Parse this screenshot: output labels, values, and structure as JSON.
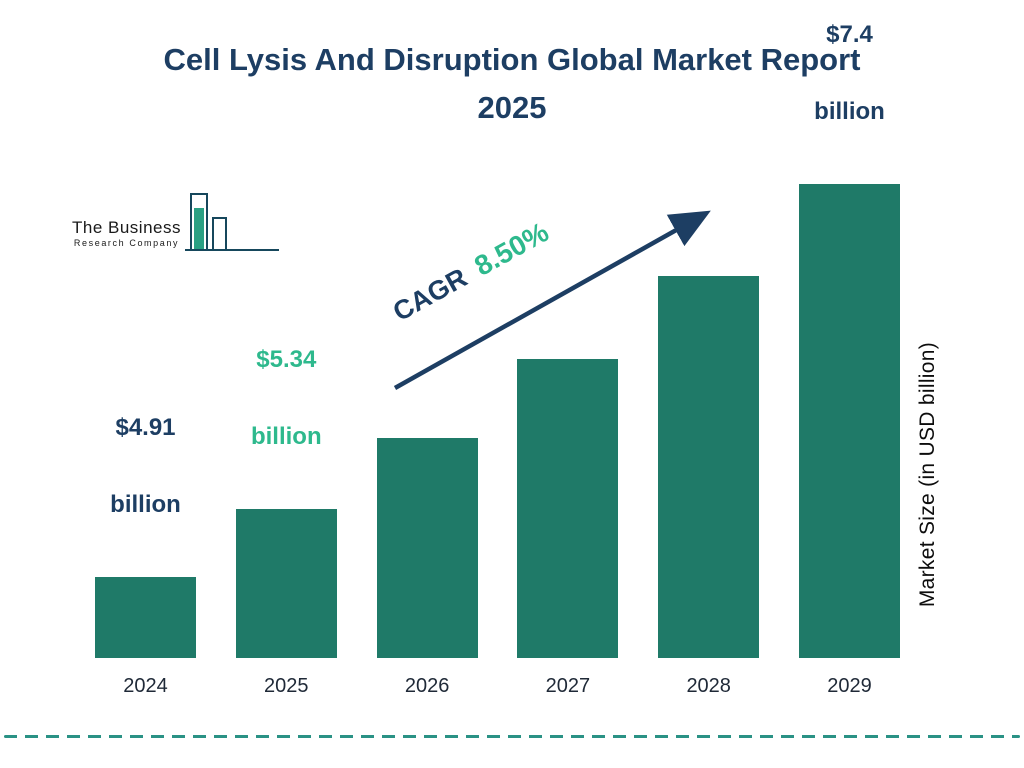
{
  "title": "Cell Lysis And Disruption Global Market Report 2025",
  "logo": {
    "line1": "The Business",
    "line2": "Research Company"
  },
  "cagr": {
    "label": "CAGR",
    "value": "8.50%"
  },
  "y_axis_label": "Market Size (in USD billion)",
  "colors": {
    "navy": "#1d3e63",
    "teal_bar": "#1f7a68",
    "green_accent": "#2eb98d",
    "dashed_line": "#2a9285"
  },
  "bars": [
    {
      "year": "2024",
      "value": 4.91,
      "label_line1": "$4.91",
      "label_line2": "billion",
      "label_color": "navy"
    },
    {
      "year": "2025",
      "value": 5.34,
      "label_line1": "$5.34",
      "label_line2": "billion",
      "label_color": "green"
    },
    {
      "year": "2026",
      "value": 5.79
    },
    {
      "year": "2027",
      "value": 6.29
    },
    {
      "year": "2028",
      "value": 6.82
    },
    {
      "year": "2029",
      "value": 7.4,
      "label_line1": "$7.4",
      "label_line2": "billion",
      "label_color": "navy"
    }
  ],
  "chart_data": {
    "type": "bar",
    "title": "Cell Lysis And Disruption Global Market Report 2025",
    "categories": [
      "2024",
      "2025",
      "2026",
      "2027",
      "2028",
      "2029"
    ],
    "values": [
      4.91,
      5.34,
      5.79,
      6.29,
      6.82,
      7.4
    ],
    "value_labels_shown": {
      "2024": "$4.91 billion",
      "2025": "$5.34 billion",
      "2029": "$7.4 billion"
    },
    "xlabel": "",
    "ylabel": "Market Size (in USD billion)",
    "unit": "USD billion",
    "ylim": [
      4.4,
      7.5
    ],
    "grid": false,
    "legend": "none",
    "bar_color": "#1f7a68",
    "annotations": [
      "CAGR 8.50%"
    ]
  }
}
